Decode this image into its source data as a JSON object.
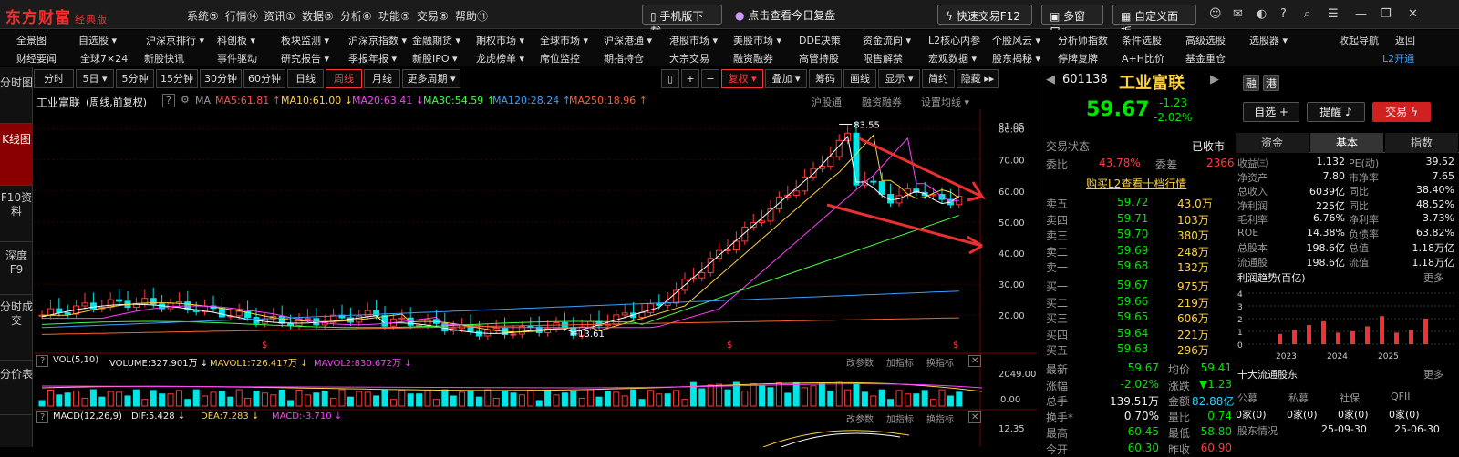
{
  "app": {
    "logo": "东方财富",
    "edition": "经典版"
  },
  "menu": [
    "系统⑤",
    "行情⑭",
    "资讯①",
    "数据⑤",
    "分析⑥",
    "功能⑤",
    "交易⑧",
    "帮助⑪"
  ],
  "top_buttons": {
    "mobile": "手机版下载",
    "review": "点击查看今日复盘",
    "quick_trade": "快速交易F12",
    "multi": "多窗口",
    "custom": "自定义面板"
  },
  "nav1": [
    "全景图",
    "自选股 ▾",
    "沪深京排行 ▾",
    "科创板 ▾",
    "板块监测 ▾",
    "沪深京指数 ▾",
    "金融期货 ▾",
    "期权市场 ▾",
    "全球市场 ▾",
    "沪深港通 ▾",
    "港股市场 ▾",
    "美股市场 ▾",
    "DDE决策",
    "资金流向 ▾",
    "L2核心内参",
    "个股风云 ▾",
    "分析师指数",
    "条件选股",
    "高级选股",
    "选股器 ▾",
    "收起导航",
    "返回"
  ],
  "nav2": [
    "财经要闻",
    "全球7×24",
    "新股快讯",
    "事件驱动",
    "研究报告 ▾",
    "季报年报 ▾",
    "新股IPO ▾",
    "龙虎榜单 ▾",
    "席位监控",
    "期指持仓",
    "大宗交易",
    "融资融券",
    "高管持股",
    "限售解禁",
    "宏观数据 ▾",
    "股东揭秘 ▾",
    "停牌复牌",
    "A+H比价",
    "基金重仓",
    "L2开通"
  ],
  "left_tabs": [
    "分时图",
    "K线图",
    "F10资料",
    "深度F9",
    "分时成交",
    "分价表"
  ],
  "periods": [
    "分时",
    "5日 ▾",
    "5分钟",
    "15分钟",
    "30分钟",
    "60分钟",
    "日线",
    "周线",
    "月线",
    "更多周期 ▾"
  ],
  "tools": [
    "▯",
    "+",
    "−",
    "复权 ▾",
    "叠加 ▾",
    "筹码",
    "画线",
    "显示 ▾",
    "简约",
    "隐藏 ▸▸"
  ],
  "chart_info": {
    "name": "工业富联",
    "mode": "(周线,前复权)",
    "ma_label": "MA",
    "ma5": "MA5:61.81 ↑",
    "ma10": "MA10:61.00 ↓",
    "ma20": "MA20:63.41 ↓",
    "ma30": "MA30:54.59 ↑",
    "ma120": "MA120:28.24 ↑",
    "ma250": "MA250:18.96 ↑",
    "hgt": "沪股通",
    "rzrq": "融资融券",
    "settings": "设置均线 ▾"
  },
  "vol": {
    "label": "VOL(5,10)",
    "volume": "VOLUME:327.901万 ↓",
    "mavol1": "MAVOL1:726.417万 ↓",
    "mavol2": "MAVOL2:830.672万 ↓",
    "actions": [
      "改参数",
      "加指标",
      "换指标"
    ],
    "scale_top": "2049.00",
    "scale_bottom": "0.00"
  },
  "macd": {
    "label": "MACD(12,26,9)",
    "dif": "DIF:5.428 ↓",
    "dea": "DEA:7.283 ↓",
    "macd": "MACD:-3.710 ↓",
    "actions": [
      "改参数",
      "加指标",
      "换指标"
    ],
    "scale_top": "12.35"
  },
  "price_axis": [
    "81.05",
    "80.00",
    "70.00",
    "60.00",
    "50.00",
    "40.00",
    "30.00",
    "20.00"
  ],
  "annotations": {
    "high": "83.55",
    "low": "13.61"
  },
  "quote": {
    "code": "601138",
    "name": "工业富联",
    "tag1": "融",
    "tag2": "港",
    "price": "59.67",
    "change": "-1.23",
    "pct": "-2.02%",
    "btn_watch": "自选 +",
    "btn_alert": "提醒",
    "btn_trade": "交易",
    "trade_state_label": "交易状态",
    "trade_state": "已收市",
    "weibi_label": "委比",
    "weibi": "43.78%",
    "weicha_label": "委差",
    "weicha": "2366",
    "l2_link": "购买L2查看十档行情"
  },
  "asks": [
    [
      "卖五",
      "59.72",
      "43.0万"
    ],
    [
      "卖四",
      "59.71",
      "103万"
    ],
    [
      "卖三",
      "59.70",
      "380万"
    ],
    [
      "卖二",
      "59.69",
      "248万"
    ],
    [
      "卖一",
      "59.68",
      "132万"
    ]
  ],
  "bids": [
    [
      "买一",
      "59.67",
      "975万"
    ],
    [
      "买二",
      "59.66",
      "219万"
    ],
    [
      "买三",
      "59.65",
      "606万"
    ],
    [
      "买四",
      "59.64",
      "221万"
    ],
    [
      "买五",
      "59.63",
      "296万"
    ]
  ],
  "stats": [
    [
      "最新",
      "59.67",
      "均价",
      "59.41"
    ],
    [
      "涨幅",
      "-2.02%",
      "涨跌",
      "▼1.23"
    ],
    [
      "总手",
      "139.51万",
      "金额",
      "82.88亿"
    ],
    [
      "换手*",
      "0.70%",
      "量比",
      "0.74"
    ],
    [
      "最高",
      "60.45",
      "最低",
      "58.80"
    ],
    [
      "今开",
      "60.30",
      "昨收",
      "60.90"
    ]
  ],
  "fund_tabs": [
    "资金",
    "基本",
    "指数"
  ],
  "fund": [
    [
      "收益㈢",
      "1.132",
      "PE(动)",
      "39.52"
    ],
    [
      "净资产",
      "7.80",
      "市净率",
      "7.65"
    ],
    [
      "总收入",
      "6039亿",
      "同比",
      "38.40%"
    ],
    [
      "净利润",
      "225亿",
      "同比",
      "48.52%"
    ],
    [
      "毛利率",
      "6.76%",
      "净利率",
      "3.73%"
    ],
    [
      "ROE",
      "14.38%",
      "负债率",
      "63.82%"
    ],
    [
      "总股本",
      "198.6亿",
      "总值",
      "1.18万亿"
    ],
    [
      "流通股",
      "198.6亿",
      "流值",
      "1.18万亿"
    ]
  ],
  "profit": {
    "title": "利润趋势(百亿)",
    "more": "更多",
    "yaxis": [
      "4",
      "3",
      "2",
      "1",
      "0"
    ],
    "years": [
      "2023",
      "2024",
      "2025"
    ],
    "values": [
      0.8,
      1.1,
      1.5,
      1.8,
      0.9,
      1.0,
      1.4,
      2.2,
      0.9,
      1.1,
      2.0
    ]
  },
  "holders": {
    "title": "十大流通股东",
    "more": "更多",
    "cols": [
      "公募",
      "私募",
      "社保",
      "QFII"
    ],
    "vals": [
      "0家(0)",
      "0家(0)",
      "0家(0)",
      "0家(0)"
    ],
    "footer": [
      "股东情况",
      "25-09-30",
      "25-06-30"
    ]
  },
  "colors": {
    "up": "#ff3b3b",
    "down": "#00e6e6",
    "ma5": "#ffffff",
    "ma10": "#ffd23c",
    "ma20": "#ff40ff",
    "ma30": "#40ff40",
    "ma120": "#3aa0ff",
    "ma250": "#ff6030"
  }
}
